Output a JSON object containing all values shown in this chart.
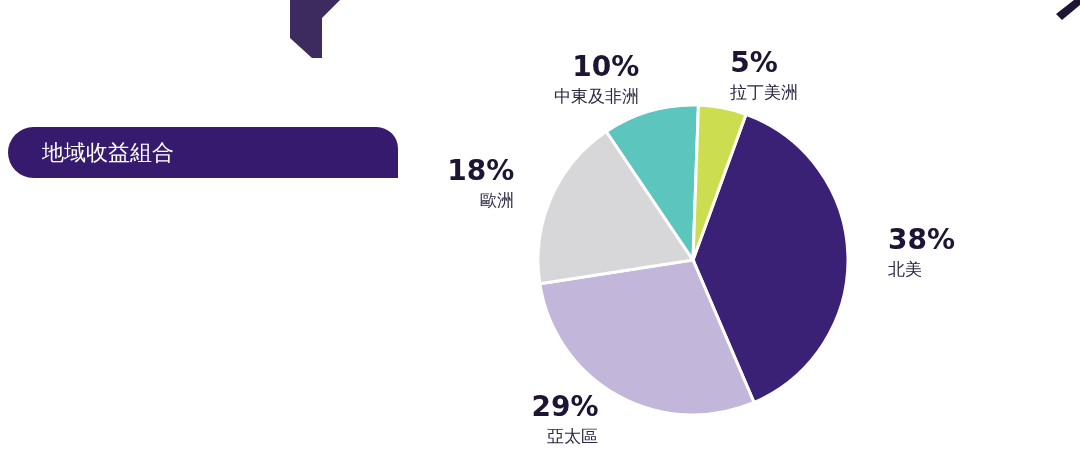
{
  "chart_data": {
    "type": "pie",
    "title": "地域收益組合",
    "categories": [
      "北美",
      "亞太區",
      "歐洲",
      "中東及非洲",
      "拉丁美洲"
    ],
    "values": [
      38,
      29,
      18,
      10,
      5
    ],
    "colors": [
      "#3b2175",
      "#c2b6da",
      "#d7d7d9",
      "#5cc5bd",
      "#cddd50"
    ],
    "value_labels": [
      "38%",
      "29%",
      "18%",
      "10%",
      "5%"
    ]
  }
}
